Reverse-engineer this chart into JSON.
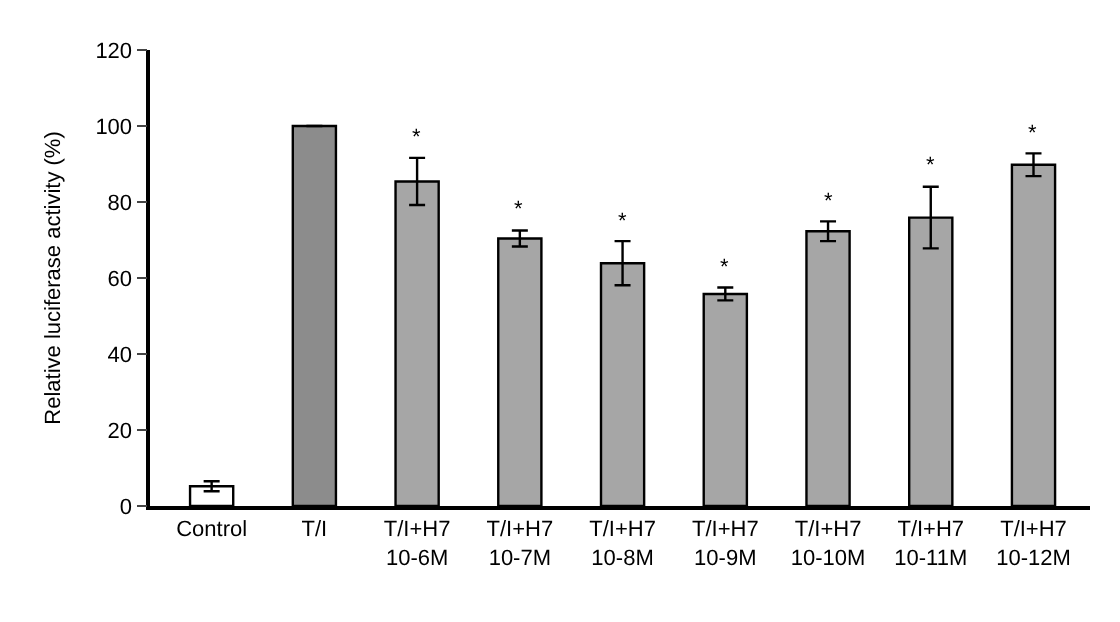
{
  "chart_data": {
    "type": "bar",
    "ylabel": "Relative luciferase activity (%)",
    "categories": [
      "Control",
      "T/I",
      "T/I+H7\n10-6M",
      "T/I+H7\n10-7M",
      "T/I+H7\n10-8M",
      "T/I+H7\n10-9M",
      "T/I+H7\n10-10M",
      "T/I+H7\n10-11M",
      "T/I+H7\n10-12M"
    ],
    "values": [
      5.2,
      100,
      85.4,
      70.4,
      63.9,
      55.8,
      72.3,
      75.9,
      89.8
    ],
    "errors": [
      1.3,
      null,
      6.2,
      2.1,
      5.8,
      1.7,
      2.6,
      8.1,
      3.0
    ],
    "colors": [
      "#ffffff",
      "#8c8c8c",
      "#a6a6a6",
      "#a6a6a6",
      "#a6a6a6",
      "#a6a6a6",
      "#a6a6a6",
      "#a6a6a6",
      "#a6a6a6"
    ],
    "annotations": [
      {
        "text": "*",
        "x": "T/I+H7\n10-6M",
        "y": 91.6
      },
      {
        "text": "*",
        "x": "T/I+H7\n10-7M",
        "y": 72.5
      },
      {
        "text": "*",
        "x": "T/I+H7\n10-8M",
        "y": 69.7
      },
      {
        "text": "*",
        "x": "T/I+H7\n10-9M",
        "y": 57.5
      },
      {
        "text": "*",
        "x": "T/I+H7\n10-10M",
        "y": 74.9
      },
      {
        "text": "*",
        "x": "T/I+H7\n10-11M",
        "y": 84.0
      },
      {
        "text": "*",
        "x": "T/I+H7\n10-12M",
        "y": 92.8
      }
    ],
    "ylim": [
      0,
      120
    ],
    "yticks": [
      0,
      20,
      40,
      60,
      80,
      100,
      120
    ]
  }
}
